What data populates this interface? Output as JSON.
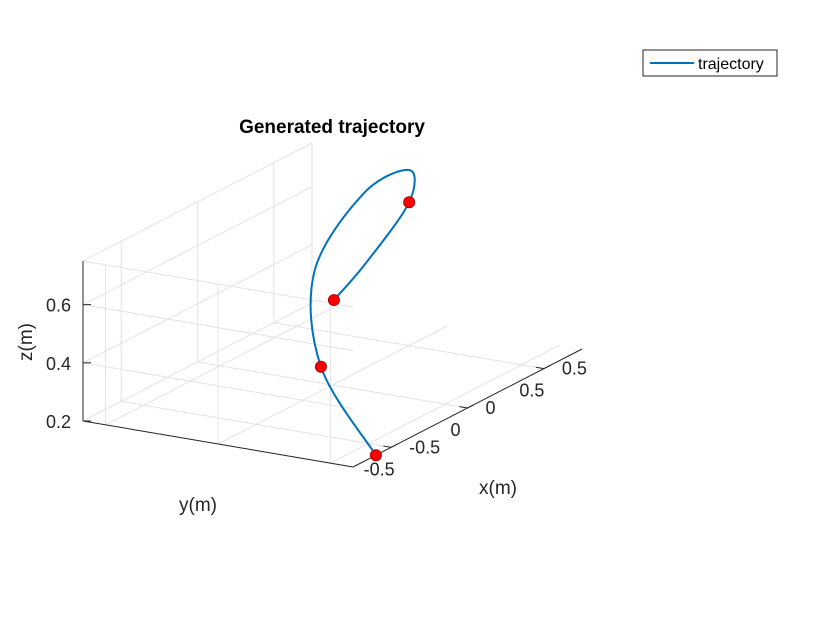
{
  "chart_data": {
    "type": "line",
    "title": "Generated trajectory",
    "xlabel": "x(m)",
    "ylabel": "y(m)",
    "zlabel": "z(m)",
    "xlim": [
      -0.75,
      0.75
    ],
    "ylim": [
      -0.6,
      0.6
    ],
    "zlim": [
      0.2,
      0.75
    ],
    "xticks": [
      -0.5,
      0,
      0.5
    ],
    "xtick_labels": [
      "-0.5",
      "0",
      "0.5"
    ],
    "yticks": [
      -0.5,
      0,
      0.5
    ],
    "ytick_labels": [
      "-0.5",
      "0",
      "0.5"
    ],
    "zticks": [
      0.2,
      0.4,
      0.6
    ],
    "ztick_labels": [
      "0.2",
      "0.4",
      "0.6"
    ],
    "grid": true,
    "legend": {
      "position": "top-right outside",
      "entries": [
        "trajectory"
      ]
    },
    "series": [
      {
        "name": "trajectory",
        "color": "#0072BD",
        "points": [
          {
            "x": -0.6,
            "y": -0.6,
            "z": 0.2
          },
          {
            "x": -0.4,
            "y": -0.22,
            "z": 0.4
          },
          {
            "x": -0.06,
            "y": 0.04,
            "z": 0.6
          },
          {
            "x": 0.35,
            "y": 0.1,
            "z": 0.75
          },
          {
            "x": 0.65,
            "y": 0.1,
            "z": 0.75
          },
          {
            "x": 0.62,
            "y": 0.08,
            "z": 0.65
          },
          {
            "x": 0.25,
            "y": 0.02,
            "z": 0.55
          },
          {
            "x": -0.02,
            "y": -0.02,
            "z": 0.5
          }
        ]
      }
    ],
    "waypoints": {
      "color": "#FF0000",
      "points": [
        {
          "x": -0.6,
          "y": -0.6,
          "z": 0.2
        },
        {
          "x": -0.4,
          "y": -0.22,
          "z": 0.4
        },
        {
          "x": 0.62,
          "y": 0.08,
          "z": 0.65
        },
        {
          "x": -0.02,
          "y": -0.02,
          "z": 0.5
        }
      ]
    }
  }
}
